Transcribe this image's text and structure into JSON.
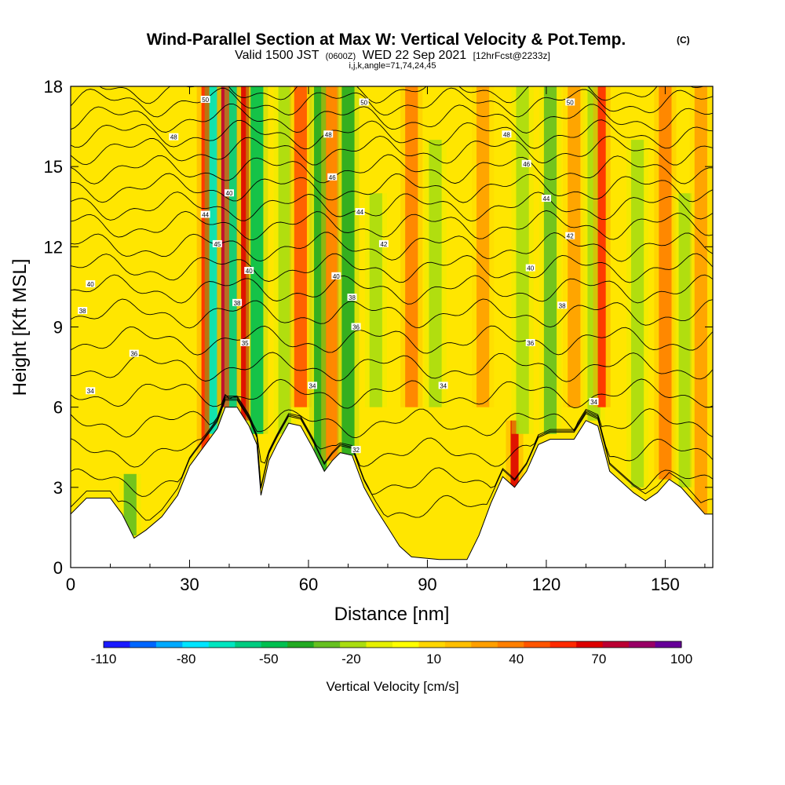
{
  "chart_data": {
    "type": "heatmap",
    "title": "Wind-Parallel Section at Max W: Vertical Velocity & Pot.Temp.",
    "title_mark": "(C)",
    "subtitle": {
      "valid_prefix": "Valid 1500 JST",
      "utc": "(0600Z)",
      "date": "WED 22 Sep 2021",
      "forecast": "[12hrFcst@2233z]"
    },
    "section_info": "i,j,k,angle=71,74,24,45",
    "xlabel": "Distance [nm]",
    "ylabel": "Height [Kft MSL]",
    "xlim": [
      0,
      162
    ],
    "ylim": [
      0,
      18
    ],
    "x_ticks": [
      "0",
      "30",
      "60",
      "90",
      "120",
      "150"
    ],
    "x_tick_values": [
      0,
      30,
      60,
      90,
      120,
      150
    ],
    "y_ticks": [
      "0",
      "3",
      "6",
      "9",
      "12",
      "15",
      "18"
    ],
    "y_tick_values": [
      0,
      3,
      6,
      9,
      12,
      15,
      18
    ],
    "colorbar": {
      "title": "Vertical Velocity [cm/s]",
      "labels": [
        "-110",
        "-80",
        "-50",
        "-20",
        "10",
        "40",
        "70",
        "100"
      ],
      "colors": [
        "#1a1aff",
        "#0066ff",
        "#00aaff",
        "#00e5ff",
        "#00e6c0",
        "#00cc80",
        "#00c050",
        "#22aa22",
        "#66c020",
        "#aadd11",
        "#e6f000",
        "#ffff00",
        "#ffd700",
        "#ffbf00",
        "#ff9f00",
        "#ff7f00",
        "#ff5500",
        "#ff2a00",
        "#dd0000",
        "#bb0033",
        "#990066",
        "#660099"
      ]
    },
    "terrain_top_kft": [
      {
        "x": 0,
        "y": 2.0
      },
      {
        "x": 4,
        "y": 2.6
      },
      {
        "x": 10,
        "y": 2.6
      },
      {
        "x": 13,
        "y": 2.0
      },
      {
        "x": 16,
        "y": 1.1
      },
      {
        "x": 19,
        "y": 1.4
      },
      {
        "x": 23,
        "y": 1.9
      },
      {
        "x": 27,
        "y": 2.7
      },
      {
        "x": 30,
        "y": 3.8
      },
      {
        "x": 34,
        "y": 4.6
      },
      {
        "x": 37,
        "y": 5.2
      },
      {
        "x": 39,
        "y": 6.0
      },
      {
        "x": 42,
        "y": 6.0
      },
      {
        "x": 45,
        "y": 5.3
      },
      {
        "x": 47,
        "y": 4.6
      },
      {
        "x": 48,
        "y": 2.7
      },
      {
        "x": 50,
        "y": 4.0
      },
      {
        "x": 52,
        "y": 4.6
      },
      {
        "x": 55,
        "y": 5.4
      },
      {
        "x": 58,
        "y": 5.3
      },
      {
        "x": 61,
        "y": 4.5
      },
      {
        "x": 64,
        "y": 3.6
      },
      {
        "x": 66,
        "y": 4.0
      },
      {
        "x": 68,
        "y": 4.3
      },
      {
        "x": 71,
        "y": 4.2
      },
      {
        "x": 74,
        "y": 3.0
      },
      {
        "x": 77,
        "y": 2.2
      },
      {
        "x": 80,
        "y": 1.5
      },
      {
        "x": 83,
        "y": 0.8
      },
      {
        "x": 86,
        "y": 0.4
      },
      {
        "x": 93,
        "y": 0.3
      },
      {
        "x": 100,
        "y": 0.3
      },
      {
        "x": 103,
        "y": 1.2
      },
      {
        "x": 106,
        "y": 2.4
      },
      {
        "x": 109,
        "y": 3.4
      },
      {
        "x": 112,
        "y": 3.0
      },
      {
        "x": 115,
        "y": 3.6
      },
      {
        "x": 118,
        "y": 4.6
      },
      {
        "x": 121,
        "y": 4.8
      },
      {
        "x": 124,
        "y": 4.8
      },
      {
        "x": 127,
        "y": 4.8
      },
      {
        "x": 130,
        "y": 5.5
      },
      {
        "x": 133,
        "y": 5.3
      },
      {
        "x": 136,
        "y": 3.6
      },
      {
        "x": 139,
        "y": 3.2
      },
      {
        "x": 142,
        "y": 2.8
      },
      {
        "x": 145,
        "y": 2.5
      },
      {
        "x": 148,
        "y": 2.8
      },
      {
        "x": 151,
        "y": 3.3
      },
      {
        "x": 154,
        "y": 3.0
      },
      {
        "x": 157,
        "y": 2.5
      },
      {
        "x": 160,
        "y": 2.0
      },
      {
        "x": 162,
        "y": 2.0
      }
    ],
    "velocity_columns_cm_s": [
      {
        "x": 15,
        "w": -30,
        "y_from": 1.2,
        "y_to": 3.5
      },
      {
        "x": 34,
        "w": 60,
        "y_from": 4.0,
        "y_to": 18
      },
      {
        "x": 36,
        "w": -70,
        "y_from": 5.0,
        "y_to": 18
      },
      {
        "x": 39,
        "w": 80,
        "y_from": 6.0,
        "y_to": 18
      },
      {
        "x": 41,
        "w": -60,
        "y_from": 6.0,
        "y_to": 18
      },
      {
        "x": 44,
        "w": 70,
        "y_from": 5.5,
        "y_to": 18
      },
      {
        "x": 47,
        "w": -50,
        "y_from": 5.0,
        "y_to": 18
      },
      {
        "x": 54,
        "w": -20,
        "y_from": 5.0,
        "y_to": 18
      },
      {
        "x": 58,
        "w": 50,
        "y_from": 6.0,
        "y_to": 18
      },
      {
        "x": 63,
        "w": -40,
        "y_from": 3.6,
        "y_to": 18
      },
      {
        "x": 66,
        "w": 40,
        "y_from": 4.0,
        "y_to": 18
      },
      {
        "x": 70,
        "w": -40,
        "y_from": 4.2,
        "y_to": 18
      },
      {
        "x": 77,
        "w": -20,
        "y_from": 6.0,
        "y_to": 14
      },
      {
        "x": 86,
        "w": 40,
        "y_from": 6.0,
        "y_to": 18
      },
      {
        "x": 92,
        "w": -20,
        "y_from": 6.0,
        "y_to": 16
      },
      {
        "x": 104,
        "w": 30,
        "y_from": 6.0,
        "y_to": 18
      },
      {
        "x": 112,
        "w": 70,
        "y_from": 3.0,
        "y_to": 5.5
      },
      {
        "x": 114,
        "w": -20,
        "y_from": 5.0,
        "y_to": 18
      },
      {
        "x": 121,
        "w": -30,
        "y_from": 5.0,
        "y_to": 18
      },
      {
        "x": 127,
        "w": 30,
        "y_from": 6.0,
        "y_to": 18
      },
      {
        "x": 132,
        "w": -20,
        "y_from": 5.5,
        "y_to": 18
      },
      {
        "x": 134,
        "w": 60,
        "y_from": 6.0,
        "y_to": 18
      },
      {
        "x": 143,
        "w": -20,
        "y_from": 3.0,
        "y_to": 16
      },
      {
        "x": 150,
        "w": 40,
        "y_from": 3.3,
        "y_to": 18
      },
      {
        "x": 155,
        "w": -20,
        "y_from": 3.0,
        "y_to": 14
      },
      {
        "x": 159,
        "w": 30,
        "y_from": 2.0,
        "y_to": 18
      }
    ],
    "isentropes_kft": {
      "levels": [
        31,
        32,
        33,
        34,
        35,
        36,
        37,
        38,
        39,
        40,
        41,
        42,
        43,
        44,
        45,
        46,
        47,
        48,
        49,
        50
      ],
      "base_height": [
        2.2,
        3.2,
        4.3,
        5.4,
        6.5,
        7.5,
        8.5,
        9.5,
        10.4,
        11.2,
        12.0,
        12.8,
        13.5,
        14.2,
        14.9,
        15.6,
        16.2,
        16.8,
        17.4,
        17.9
      ]
    },
    "contour_labels": [
      {
        "text": "50",
        "x": 34,
        "y": 17.5
      },
      {
        "text": "48",
        "x": 26,
        "y": 16.1
      },
      {
        "text": "44",
        "x": 34,
        "y": 13.2
      },
      {
        "text": "40",
        "x": 40,
        "y": 14.0
      },
      {
        "text": "45",
        "x": 37,
        "y": 12.1
      },
      {
        "text": "40",
        "x": 5,
        "y": 10.6
      },
      {
        "text": "38",
        "x": 3,
        "y": 9.6
      },
      {
        "text": "36",
        "x": 16,
        "y": 8.0
      },
      {
        "text": "34",
        "x": 5,
        "y": 6.6
      },
      {
        "text": "40",
        "x": 45,
        "y": 11.1
      },
      {
        "text": "38",
        "x": 42,
        "y": 9.9
      },
      {
        "text": "35",
        "x": 44,
        "y": 8.4
      },
      {
        "text": "48",
        "x": 65,
        "y": 16.2
      },
      {
        "text": "50",
        "x": 74,
        "y": 17.4
      },
      {
        "text": "46",
        "x": 66,
        "y": 14.6
      },
      {
        "text": "44",
        "x": 73,
        "y": 13.3
      },
      {
        "text": "42",
        "x": 79,
        "y": 12.1
      },
      {
        "text": "40",
        "x": 67,
        "y": 10.9
      },
      {
        "text": "38",
        "x": 71,
        "y": 10.1
      },
      {
        "text": "36",
        "x": 72,
        "y": 9.0
      },
      {
        "text": "34",
        "x": 61,
        "y": 6.8
      },
      {
        "text": "32",
        "x": 72,
        "y": 4.4
      },
      {
        "text": "50",
        "x": 126,
        "y": 17.4
      },
      {
        "text": "48",
        "x": 110,
        "y": 16.2
      },
      {
        "text": "46",
        "x": 115,
        "y": 15.1
      },
      {
        "text": "44",
        "x": 120,
        "y": 13.8
      },
      {
        "text": "42",
        "x": 126,
        "y": 12.4
      },
      {
        "text": "40",
        "x": 116,
        "y": 11.2
      },
      {
        "text": "38",
        "x": 124,
        "y": 9.8
      },
      {
        "text": "36",
        "x": 116,
        "y": 8.4
      },
      {
        "text": "34",
        "x": 94,
        "y": 6.8
      },
      {
        "text": "34",
        "x": 132,
        "y": 6.2
      }
    ]
  }
}
